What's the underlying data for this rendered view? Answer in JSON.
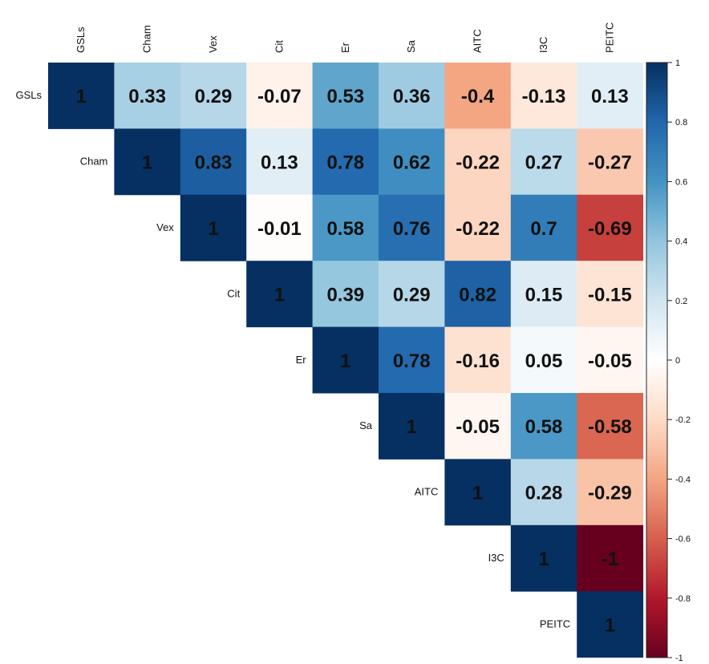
{
  "chart_data": {
    "type": "heatmap",
    "subtype": "correlation-upper-triangle",
    "title": "",
    "variables": [
      "GSLs",
      "Cham",
      "Vex",
      "Cit",
      "Er",
      "Sa",
      "AITC",
      "I3C",
      "PEITC"
    ],
    "matrix": [
      [
        1,
        0.33,
        0.29,
        -0.07,
        0.53,
        0.36,
        -0.4,
        -0.13,
        0.13
      ],
      [
        null,
        1,
        0.83,
        0.13,
        0.78,
        0.62,
        -0.22,
        0.27,
        -0.27
      ],
      [
        null,
        null,
        1,
        -0.01,
        0.58,
        0.76,
        -0.22,
        0.7,
        -0.69
      ],
      [
        null,
        null,
        null,
        1,
        0.39,
        0.29,
        0.82,
        0.15,
        -0.15
      ],
      [
        null,
        null,
        null,
        null,
        1,
        0.78,
        -0.16,
        0.05,
        -0.05
      ],
      [
        null,
        null,
        null,
        null,
        null,
        1,
        -0.05,
        0.58,
        -0.58
      ],
      [
        null,
        null,
        null,
        null,
        null,
        null,
        1,
        0.28,
        -0.29
      ],
      [
        null,
        null,
        null,
        null,
        null,
        null,
        null,
        1,
        -1
      ],
      [
        null,
        null,
        null,
        null,
        null,
        null,
        null,
        null,
        1
      ]
    ],
    "colorbar": {
      "range": [
        -1,
        1
      ],
      "ticks": [
        "1",
        "0.8",
        "0.6",
        "0.4",
        "0.2",
        "0",
        "-0.2",
        "-0.4",
        "-0.6",
        "-0.8",
        "-1"
      ],
      "colors": [
        "#67001f",
        "#b2182b",
        "#d6604d",
        "#f4a582",
        "#fddbc7",
        "#ffffff",
        "#d1e5f0",
        "#92c5de",
        "#4393c3",
        "#2166ac",
        "#053061"
      ]
    },
    "legend": "right"
  }
}
